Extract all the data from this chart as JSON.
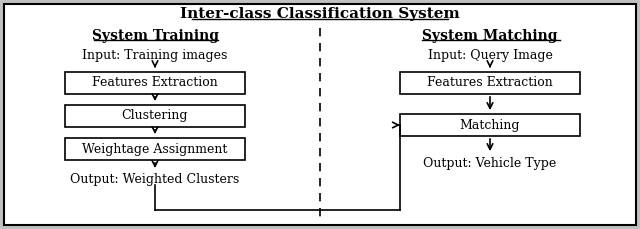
{
  "title": "Inter-class Classification System",
  "left_header": "System Training",
  "right_header": "System Matching",
  "left_input": "Input: Training images",
  "right_input": "Input: Query Image",
  "left_boxes": [
    "Features Extraction",
    "Clustering",
    "Weightage Assignment"
  ],
  "right_boxes": [
    "Features Extraction",
    "Matching"
  ],
  "left_output": "Output: Weighted Clusters",
  "right_output": "Output: Vehicle Type",
  "box_color": "#ffffff",
  "box_edge": "#000000",
  "text_color": "#000000",
  "fig_bg": "#c0c0c0"
}
